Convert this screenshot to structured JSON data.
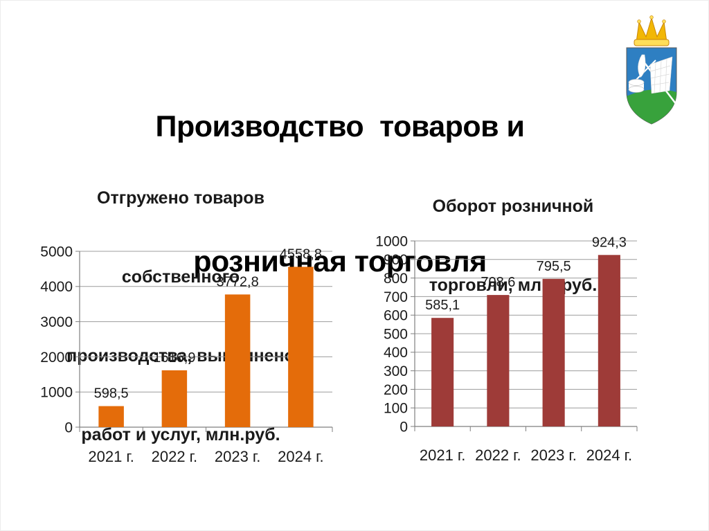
{
  "slide": {
    "title_lines": [
      "Производство  товаров и",
      "розничная торговля"
    ]
  },
  "emblem": {
    "crown_color": "#F2B705",
    "crown_light": "#FFDE59",
    "field_color": "#2E7FC2",
    "base_color": "#38A23C",
    "charge_color": "#FFFFFF"
  },
  "chart_data": [
    {
      "type": "bar",
      "title": "Отгружено товаров собственного производства, выполнено работ и услуг, млн.руб.",
      "title_lines": [
        "Отгружено товаров",
        "собственного",
        "производства, выполнено",
        "работ и услуг, млн.руб."
      ],
      "categories": [
        "2021 г.",
        "2022 г.",
        "2023 г.",
        "2024 г."
      ],
      "values": [
        598.5,
        1616.9,
        3772.8,
        4558.8
      ],
      "value_labels": [
        "598,5",
        "1616,9",
        "3772,8",
        "4558,8"
      ],
      "ylim": [
        0,
        5000
      ],
      "ytick_step": 1000,
      "ytick_labels": [
        "0",
        "1000",
        "2000",
        "3000",
        "4000",
        "5000"
      ],
      "bar_color": "#E46C0A",
      "grid": true,
      "legend": "none",
      "xlabel": "",
      "ylabel": ""
    },
    {
      "type": "bar",
      "title": "Оборот розничной торговли, млн. руб.",
      "title_lines": [
        "Оборот розничной",
        "торговли, млн. руб."
      ],
      "categories": [
        "2021 г.",
        "2022 г.",
        "2023 г.",
        "2024 г."
      ],
      "values": [
        585.1,
        708.6,
        795.5,
        924.3
      ],
      "value_labels": [
        "585,1",
        "708,6",
        "795,5",
        "924,3"
      ],
      "ylim": [
        0,
        1000
      ],
      "ytick_step": 100,
      "ytick_labels": [
        "0",
        "100",
        "200",
        "300",
        "400",
        "500",
        "600",
        "700",
        "800",
        "900",
        "1000"
      ],
      "bar_color": "#9E3B38",
      "grid": true,
      "legend": "none",
      "xlabel": "",
      "ylabel": ""
    }
  ]
}
